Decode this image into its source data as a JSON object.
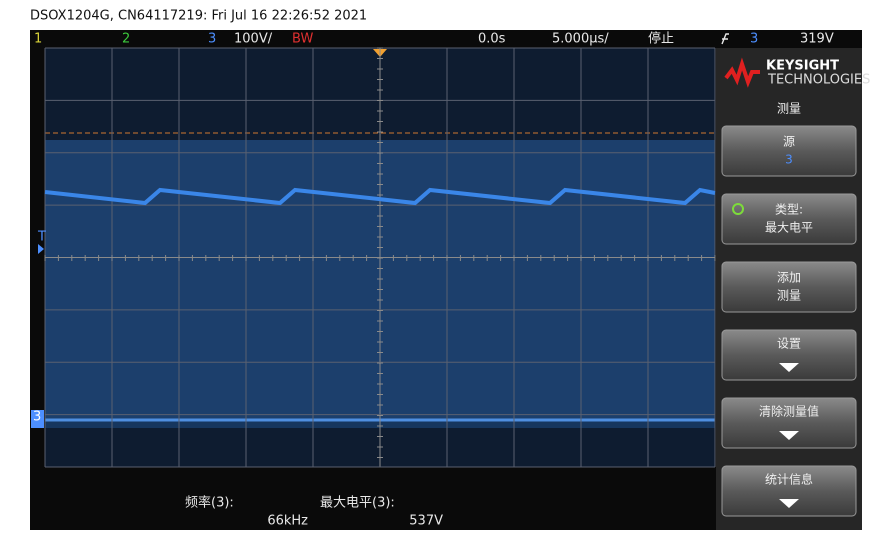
{
  "header": {
    "title": "DSOX1204G, CN64117219: Fri Jul 16 22:26:52 2021"
  },
  "status_bar": {
    "channel_1": "1",
    "channel_2": "2",
    "channel_3": "3",
    "scale": "100V/",
    "bandwidth": "BW",
    "delay": "0.0s",
    "timebase": "5.000µs/",
    "run_state": "停止",
    "trigger_source": "3",
    "trigger_level": "319V"
  },
  "markers": {
    "trigger": "T",
    "channel": "3"
  },
  "menu": {
    "brand": "KEYSIGHT",
    "brand_sub": "TECHNOLOGIES",
    "title": "测量",
    "buttons": [
      {
        "label": "源",
        "value": "3"
      },
      {
        "label": "类型:",
        "value": "最大电平"
      },
      {
        "label": "添加",
        "value": "测量"
      },
      {
        "label": "设置"
      },
      {
        "label": "清除测量值"
      },
      {
        "label": "统计信息"
      }
    ]
  },
  "measurements": [
    {
      "label": "频率(3):",
      "value": "66kHz"
    },
    {
      "label": "最大电平(3):",
      "value": "537V"
    }
  ]
}
